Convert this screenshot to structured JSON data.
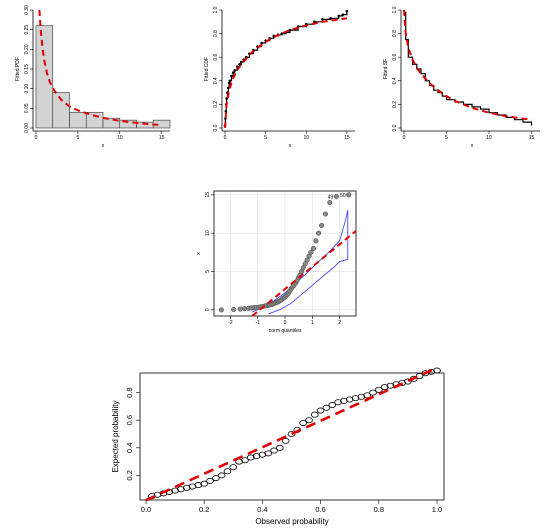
{
  "colors": {
    "fit": "#e00000",
    "bars": "#d3d3d3",
    "band": "#3333ff",
    "points": "#888888"
  },
  "chart_data": [
    {
      "type": "bar",
      "xlabel": "x",
      "ylabel": "Fitted PDF",
      "xlim": [
        0,
        16
      ],
      "ylim": [
        0,
        0.3
      ],
      "xticks": [
        "0",
        "5",
        "10",
        "15"
      ],
      "yticks": [
        "0.00",
        "0.05",
        "0.10",
        "0.15",
        "0.20",
        "0.25",
        "0.30"
      ],
      "bins": [
        [
          0,
          2
        ],
        [
          2,
          4
        ],
        [
          4,
          6
        ],
        [
          6,
          8
        ],
        [
          8,
          10
        ],
        [
          10,
          12
        ],
        [
          12,
          14
        ],
        [
          14,
          16
        ]
      ],
      "values": [
        0.26,
        0.09,
        0.04,
        0.04,
        0.025,
        0.02,
        0.015,
        0.02
      ],
      "fit_curve": {
        "x": [
          0.4,
          0.6,
          0.8,
          1.0,
          1.3,
          1.7,
          2.2,
          3.0,
          4.0,
          5.0,
          6.5,
          8.0,
          10.0,
          12.0,
          14.0,
          15.0
        ],
        "y": [
          0.3,
          0.24,
          0.2,
          0.17,
          0.14,
          0.115,
          0.095,
          0.072,
          0.055,
          0.045,
          0.034,
          0.026,
          0.018,
          0.013,
          0.009,
          0.008
        ]
      }
    },
    {
      "type": "line",
      "xlabel": "x",
      "ylabel": "Fitted CDF",
      "xlim": [
        0,
        16
      ],
      "ylim": [
        0,
        1
      ],
      "xticks": [
        "0",
        "5",
        "10",
        "15"
      ],
      "yticks": [
        "0.0",
        "0.2",
        "0.4",
        "0.6",
        "0.8",
        "1.0"
      ],
      "empirical": {
        "x": [
          0,
          0.05,
          0.1,
          0.15,
          0.2,
          0.3,
          0.4,
          0.5,
          0.6,
          0.8,
          1.0,
          1.2,
          1.5,
          1.8,
          2.0,
          2.3,
          2.6,
          3.0,
          3.5,
          4.0,
          4.5,
          5.0,
          5.5,
          6.0,
          6.5,
          7.0,
          7.5,
          8.0,
          9.0,
          10.0,
          11.0,
          12.0,
          13.0,
          14.0,
          14.5,
          15.0
        ],
        "y": [
          0.02,
          0.08,
          0.14,
          0.2,
          0.25,
          0.3,
          0.34,
          0.38,
          0.4,
          0.44,
          0.47,
          0.49,
          0.52,
          0.54,
          0.56,
          0.58,
          0.6,
          0.63,
          0.66,
          0.69,
          0.72,
          0.74,
          0.76,
          0.78,
          0.79,
          0.8,
          0.81,
          0.83,
          0.86,
          0.88,
          0.9,
          0.92,
          0.93,
          0.95,
          0.96,
          0.99
        ]
      },
      "fit_curve": {
        "x": [
          0,
          0.2,
          0.5,
          1.0,
          1.5,
          2.0,
          3.0,
          4.0,
          5.0,
          6.0,
          8.0,
          10.0,
          12.0,
          14.0,
          15.0
        ],
        "y": [
          0.0,
          0.2,
          0.32,
          0.42,
          0.49,
          0.54,
          0.62,
          0.68,
          0.73,
          0.77,
          0.83,
          0.87,
          0.9,
          0.92,
          0.93
        ]
      }
    },
    {
      "type": "line",
      "xlabel": "x",
      "ylabel": "Fitted SF",
      "xlim": [
        0,
        16
      ],
      "ylim": [
        0,
        1
      ],
      "xticks": [
        "0",
        "5",
        "10",
        "15"
      ],
      "yticks": [
        "0.0",
        "0.2",
        "0.4",
        "0.6",
        "0.8",
        "1.0"
      ],
      "empirical": {
        "x": [
          0,
          0.2,
          0.5,
          1.0,
          1.5,
          2.0,
          2.5,
          3.0,
          3.5,
          4.0,
          4.5,
          5.0,
          6.0,
          7.0,
          8.0,
          9.0,
          10.0,
          11.0,
          12.0,
          13.0,
          14.0,
          15.0
        ],
        "y": [
          0.98,
          0.75,
          0.6,
          0.54,
          0.5,
          0.46,
          0.4,
          0.36,
          0.32,
          0.3,
          0.27,
          0.24,
          0.22,
          0.2,
          0.18,
          0.16,
          0.13,
          0.11,
          0.09,
          0.07,
          0.05,
          0.02
        ]
      },
      "fit_curve": {
        "x": [
          0,
          0.2,
          0.5,
          1.0,
          1.5,
          2.0,
          3.0,
          4.0,
          5.0,
          6.0,
          8.0,
          10.0,
          12.0,
          14.0,
          15.0
        ],
        "y": [
          1.0,
          0.8,
          0.68,
          0.58,
          0.51,
          0.46,
          0.38,
          0.32,
          0.27,
          0.23,
          0.17,
          0.13,
          0.1,
          0.08,
          0.07
        ]
      }
    },
    {
      "type": "scatter",
      "xlabel": "norm quantiles",
      "ylabel": "x",
      "xlim": [
        -2.6,
        2.6
      ],
      "ylim": [
        -0.8,
        15.5
      ],
      "xticks": [
        "-2",
        "-1",
        "0",
        "1",
        "2"
      ],
      "yticks": [
        "0",
        "5",
        "10",
        "15"
      ],
      "annotations": [
        "49",
        "50"
      ],
      "points": {
        "x": [
          -2.33,
          -1.88,
          -1.64,
          -1.48,
          -1.34,
          -1.23,
          -1.13,
          -1.04,
          -0.95,
          -0.88,
          -0.81,
          -0.74,
          -0.67,
          -0.61,
          -0.55,
          -0.5,
          -0.44,
          -0.39,
          -0.33,
          -0.28,
          -0.23,
          -0.18,
          -0.13,
          -0.08,
          -0.03,
          0.03,
          0.08,
          0.13,
          0.18,
          0.23,
          0.28,
          0.33,
          0.39,
          0.44,
          0.5,
          0.55,
          0.61,
          0.67,
          0.74,
          0.81,
          0.88,
          0.95,
          1.04,
          1.13,
          1.23,
          1.34,
          1.48,
          1.64,
          1.88,
          2.33
        ],
        "y": [
          0.0,
          0.05,
          0.1,
          0.15,
          0.2,
          0.25,
          0.3,
          0.3,
          0.35,
          0.4,
          0.45,
          0.5,
          0.55,
          0.6,
          0.65,
          0.7,
          0.75,
          0.85,
          0.95,
          1.0,
          1.1,
          1.2,
          1.3,
          1.5,
          1.6,
          1.8,
          2.0,
          2.2,
          2.5,
          2.8,
          3.0,
          3.2,
          3.5,
          3.8,
          4.2,
          4.5,
          5.0,
          5.5,
          6.0,
          6.5,
          7.0,
          7.5,
          8.0,
          9.0,
          10.0,
          11.0,
          12.5,
          14.0,
          14.8,
          15.0
        ]
      },
      "ref_line": {
        "x": [
          -1.2,
          2.6
        ],
        "y": [
          -0.8,
          10.3
        ]
      },
      "band_upper": {
        "x": [
          -1.2,
          -0.8,
          -0.4,
          0.0,
          0.4,
          0.8,
          1.2,
          1.6,
          2.0,
          2.2,
          2.3
        ],
        "y": [
          -0.3,
          0.4,
          1.2,
          2.2,
          3.5,
          4.8,
          6.2,
          7.5,
          9.0,
          11.5,
          13.0
        ]
      },
      "band_lower": {
        "x": [
          -0.6,
          -0.2,
          0.2,
          0.6,
          1.0,
          1.4,
          1.8,
          2.0,
          2.3,
          2.3
        ],
        "y": [
          -0.5,
          0.0,
          0.8,
          2.0,
          3.2,
          4.4,
          5.6,
          6.3,
          6.6,
          13.0
        ]
      }
    },
    {
      "type": "scatter",
      "xlabel": "Observed probability",
      "ylabel": "Expected probability",
      "xlim": [
        0,
        1
      ],
      "ylim": [
        0,
        1
      ],
      "xticks": [
        "0.0",
        "0.2",
        "0.4",
        "0.6",
        "0.8",
        "1.0"
      ],
      "yticks": [
        "0.2",
        "0.4",
        "0.6",
        "0.8"
      ],
      "points": {
        "x": [
          0.02,
          0.04,
          0.06,
          0.08,
          0.1,
          0.12,
          0.14,
          0.16,
          0.18,
          0.2,
          0.22,
          0.24,
          0.26,
          0.28,
          0.3,
          0.32,
          0.34,
          0.36,
          0.38,
          0.4,
          0.42,
          0.44,
          0.46,
          0.48,
          0.5,
          0.52,
          0.54,
          0.56,
          0.58,
          0.6,
          0.62,
          0.64,
          0.66,
          0.68,
          0.7,
          0.72,
          0.74,
          0.76,
          0.78,
          0.8,
          0.82,
          0.84,
          0.86,
          0.88,
          0.9,
          0.92,
          0.94,
          0.96,
          0.98,
          1.0
        ],
        "y": [
          0.05,
          0.06,
          0.07,
          0.08,
          0.09,
          0.1,
          0.11,
          0.12,
          0.13,
          0.14,
          0.16,
          0.18,
          0.2,
          0.23,
          0.26,
          0.3,
          0.31,
          0.33,
          0.34,
          0.35,
          0.36,
          0.38,
          0.4,
          0.45,
          0.5,
          0.53,
          0.58,
          0.6,
          0.64,
          0.67,
          0.69,
          0.71,
          0.73,
          0.74,
          0.75,
          0.76,
          0.77,
          0.78,
          0.8,
          0.82,
          0.84,
          0.85,
          0.86,
          0.87,
          0.88,
          0.9,
          0.92,
          0.94,
          0.95,
          0.96
        ]
      },
      "ref_line": {
        "x": [
          0,
          1
        ],
        "y": [
          0.02,
          0.98
        ]
      }
    }
  ]
}
